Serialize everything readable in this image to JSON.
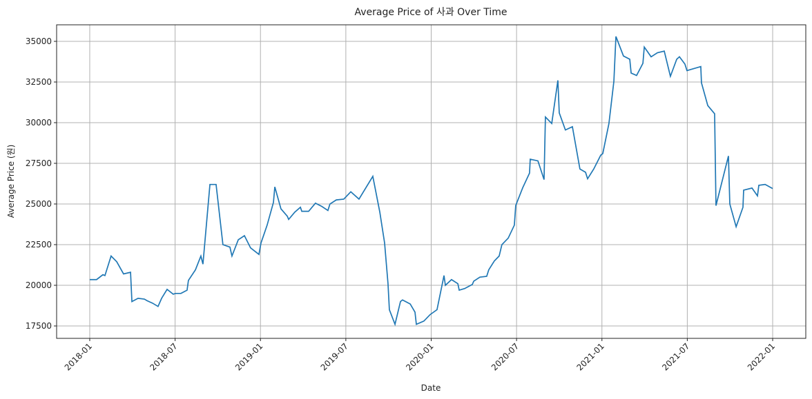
{
  "chart_data": {
    "type": "line",
    "title": "Average Price of 사과 Over Time",
    "xlabel": "Date",
    "ylabel": "Average Price (원)",
    "x": [
      2018.0,
      2018.04,
      2018.077,
      2018.089,
      2018.125,
      2018.158,
      2018.198,
      2018.239,
      2018.247,
      2018.283,
      2018.32,
      2018.336,
      2018.368,
      2018.4,
      2018.421,
      2018.453,
      2018.489,
      2018.502,
      2018.534,
      2018.57,
      2018.578,
      2018.619,
      2018.651,
      2018.663,
      2018.704,
      2018.74,
      2018.78,
      2018.821,
      2018.833,
      2018.87,
      2018.906,
      2018.942,
      2018.991,
      2019.003,
      2019.039,
      2019.076,
      2019.084,
      2019.12,
      2019.157,
      2019.165,
      2019.201,
      2019.234,
      2019.242,
      2019.282,
      2019.322,
      2019.359,
      2019.395,
      2019.407,
      2019.444,
      2019.488,
      2019.529,
      2019.577,
      2019.658,
      2019.699,
      2019.727,
      2019.747,
      2019.755,
      2019.788,
      2019.82,
      2019.832,
      2019.877,
      2019.905,
      2019.913,
      2019.957,
      2019.994,
      2020.034,
      2020.075,
      2020.083,
      2020.119,
      2020.156,
      2020.164,
      2020.196,
      2020.241,
      2020.249,
      2020.285,
      2020.325,
      2020.337,
      2020.37,
      2020.398,
      2020.414,
      2020.451,
      2020.487,
      2020.495,
      2020.536,
      2020.576,
      2020.58,
      2020.625,
      2020.661,
      2020.669,
      2020.706,
      2020.742,
      2020.75,
      2020.786,
      2020.827,
      2020.871,
      2020.904,
      2020.916,
      2020.952,
      2020.993,
      2021.005,
      2021.041,
      2021.07,
      2021.082,
      2021.126,
      2021.163,
      2021.171,
      2021.203,
      2021.24,
      2021.248,
      2021.288,
      2021.325,
      2021.365,
      2021.401,
      2021.438,
      2021.454,
      2021.486,
      2021.498,
      2021.531,
      2021.579,
      2021.583,
      2021.62,
      2021.66,
      2021.668,
      2021.741,
      2021.749,
      2021.786,
      2021.826,
      2021.83,
      2021.879,
      2021.911,
      2021.919,
      2021.956,
      2022.0
    ],
    "series": [
      {
        "name": "Average Price",
        "color": "#1f77b4",
        "values": [
          20350,
          20350,
          20650,
          20600,
          21800,
          21450,
          20700,
          20800,
          19000,
          19200,
          19150,
          19050,
          18900,
          18700,
          19200,
          19750,
          19450,
          19500,
          19500,
          19700,
          20300,
          20950,
          21800,
          21300,
          26200,
          26200,
          22500,
          22350,
          21800,
          22800,
          23050,
          22300,
          21900,
          22600,
          23700,
          25100,
          26050,
          24700,
          24250,
          24050,
          24500,
          24800,
          24550,
          24550,
          25050,
          24850,
          24600,
          25000,
          25250,
          25300,
          25750,
          25300,
          26700,
          24500,
          22600,
          20100,
          18500,
          17600,
          19000,
          19100,
          18850,
          18350,
          17600,
          17800,
          18200,
          18500,
          20600,
          20000,
          20350,
          20100,
          19700,
          19800,
          20050,
          20250,
          20500,
          20550,
          20950,
          21500,
          21800,
          22500,
          22900,
          23700,
          24900,
          26000,
          26900,
          27750,
          27650,
          26500,
          30350,
          29950,
          32600,
          30600,
          29550,
          29750,
          27150,
          26950,
          26550,
          27150,
          28000,
          28100,
          29950,
          32550,
          35300,
          34100,
          33900,
          33050,
          32900,
          33650,
          34650,
          34050,
          34300,
          34400,
          32850,
          33900,
          34050,
          33600,
          33200,
          33300,
          33450,
          32450,
          31050,
          30550,
          24900,
          27950,
          25000,
          23600,
          24800,
          25850,
          25980,
          25500,
          26150,
          26200,
          25950
        ]
      }
    ],
    "xlim": [
      2017.806,
      2022.194
    ],
    "xticks": [
      {
        "value": 2018,
        "label": "2018-01"
      },
      {
        "value": 2018.5,
        "label": "2018-07"
      },
      {
        "value": 2019,
        "label": "2019-01"
      },
      {
        "value": 2019.5,
        "label": "2019-07"
      },
      {
        "value": 2020,
        "label": "2020-01"
      },
      {
        "value": 2020.5,
        "label": "2020-07"
      },
      {
        "value": 2021,
        "label": "2021-01"
      },
      {
        "value": 2021.5,
        "label": "2021-07"
      },
      {
        "value": 2022,
        "label": "2022-01"
      }
    ],
    "ylim": [
      16737,
      36017
    ],
    "yticks": [
      17500,
      20000,
      22500,
      25000,
      27500,
      30000,
      32500,
      35000
    ],
    "grid": true
  }
}
